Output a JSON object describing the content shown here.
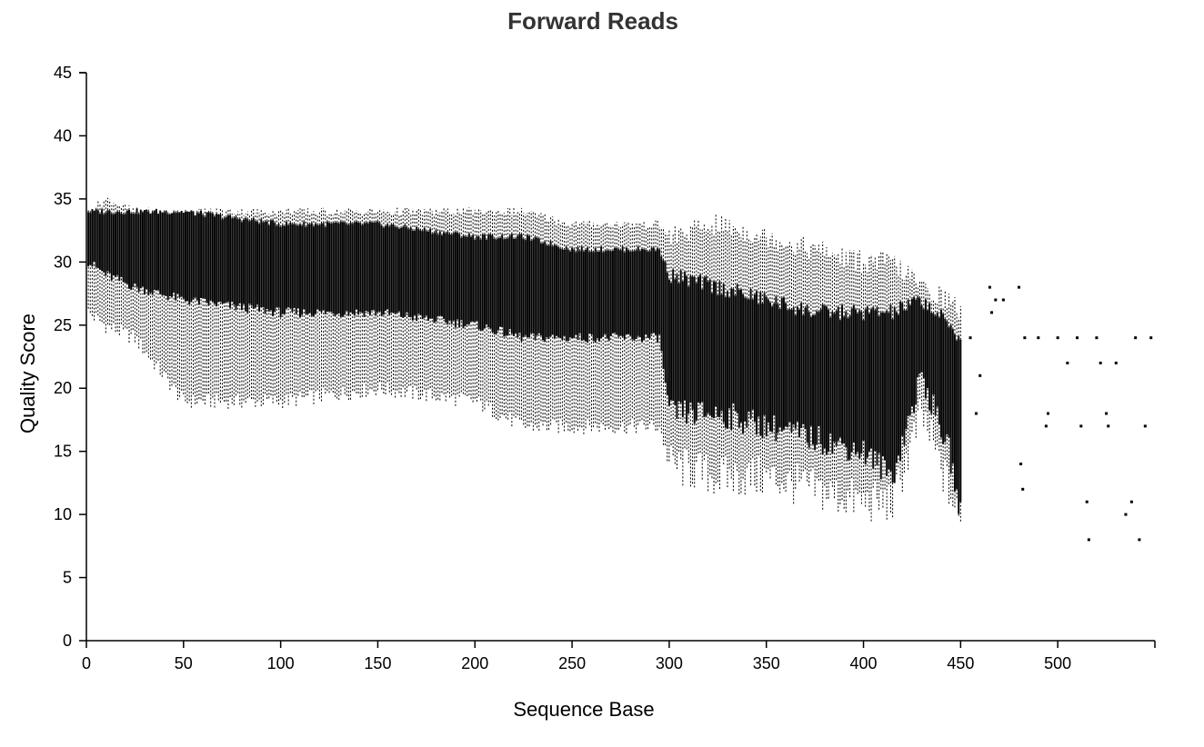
{
  "chart_data": {
    "type": "box",
    "title": "Forward Reads",
    "xlabel": "Sequence Base",
    "ylabel": "Quality Score",
    "xlim": [
      0,
      550
    ],
    "ylim": [
      0,
      45
    ],
    "x_ticks": [
      0,
      50,
      100,
      150,
      200,
      250,
      300,
      350,
      400,
      450,
      500
    ],
    "y_ticks": [
      0,
      5,
      10,
      15,
      20,
      25,
      30,
      35,
      40,
      45
    ],
    "grid": false,
    "legend": "none",
    "color": "#000000",
    "description_of_marks": "per-base quality box plots; dense black boxes with dashed whiskers",
    "profile": [
      {
        "base": 1,
        "whisker_low": 26,
        "q1": 30,
        "median": 32,
        "q3": 34,
        "whisker_high": 34
      },
      {
        "base": 10,
        "whisker_low": 25,
        "q1": 29,
        "median": 31,
        "q3": 34,
        "whisker_high": 35
      },
      {
        "base": 25,
        "whisker_low": 24,
        "q1": 28,
        "median": 31,
        "q3": 34,
        "whisker_high": 34
      },
      {
        "base": 50,
        "whisker_low": 19,
        "q1": 27,
        "median": 30,
        "q3": 34,
        "whisker_high": 34
      },
      {
        "base": 100,
        "whisker_low": 19,
        "q1": 26,
        "median": 29,
        "q3": 33,
        "whisker_high": 34
      },
      {
        "base": 150,
        "whisker_low": 20,
        "q1": 26,
        "median": 29,
        "q3": 33,
        "whisker_high": 34
      },
      {
        "base": 200,
        "whisker_low": 19,
        "q1": 25,
        "median": 29,
        "q3": 32,
        "whisker_high": 34
      },
      {
        "base": 225,
        "whisker_low": 17,
        "q1": 24,
        "median": 28,
        "q3": 32,
        "whisker_high": 34
      },
      {
        "base": 250,
        "whisker_low": 17,
        "q1": 24,
        "median": 28,
        "q3": 31,
        "whisker_high": 33
      },
      {
        "base": 275,
        "whisker_low": 17,
        "q1": 24,
        "median": 27,
        "q3": 31,
        "whisker_high": 33
      },
      {
        "base": 295,
        "whisker_low": 17,
        "q1": 24,
        "median": 27,
        "q3": 31,
        "whisker_high": 33
      },
      {
        "base": 300,
        "whisker_low": 14,
        "q1": 18,
        "median": 25,
        "q3": 29,
        "whisker_high": 32
      },
      {
        "base": 325,
        "whisker_low": 13,
        "q1": 18,
        "median": 24,
        "q3": 28,
        "whisker_high": 33
      },
      {
        "base": 350,
        "whisker_low": 13,
        "q1": 17,
        "median": 23,
        "q3": 27,
        "whisker_high": 32
      },
      {
        "base": 375,
        "whisker_low": 12,
        "q1": 16,
        "median": 22,
        "q3": 26,
        "whisker_high": 31
      },
      {
        "base": 400,
        "whisker_low": 11,
        "q1": 15,
        "median": 22,
        "q3": 26,
        "whisker_high": 30
      },
      {
        "base": 415,
        "whisker_low": 11,
        "q1": 13,
        "median": 21,
        "q3": 26,
        "whisker_high": 30
      },
      {
        "base": 430,
        "whisker_low": 18,
        "q1": 21,
        "median": 24,
        "q3": 27,
        "whisker_high": 28
      },
      {
        "base": 444,
        "whisker_low": 12,
        "q1": 15,
        "median": 22,
        "q3": 25,
        "whisker_high": 27
      },
      {
        "base": 450,
        "whisker_low": 9,
        "q1": 10,
        "median": 12,
        "q3": 24,
        "whisker_high": 26
      }
    ],
    "sparse_points": [
      {
        "x": 455,
        "y": 24
      },
      {
        "x": 458,
        "y": 18
      },
      {
        "x": 460,
        "y": 21
      },
      {
        "x": 465,
        "y": 28
      },
      {
        "x": 466,
        "y": 26
      },
      {
        "x": 468,
        "y": 27
      },
      {
        "x": 472,
        "y": 27
      },
      {
        "x": 480,
        "y": 28
      },
      {
        "x": 481,
        "y": 14
      },
      {
        "x": 482,
        "y": 12
      },
      {
        "x": 483,
        "y": 24
      },
      {
        "x": 490,
        "y": 24
      },
      {
        "x": 494,
        "y": 17
      },
      {
        "x": 495,
        "y": 18
      },
      {
        "x": 500,
        "y": 24
      },
      {
        "x": 505,
        "y": 22
      },
      {
        "x": 510,
        "y": 24
      },
      {
        "x": 512,
        "y": 17
      },
      {
        "x": 515,
        "y": 11
      },
      {
        "x": 516,
        "y": 8
      },
      {
        "x": 520,
        "y": 24
      },
      {
        "x": 522,
        "y": 22
      },
      {
        "x": 525,
        "y": 18
      },
      {
        "x": 526,
        "y": 17
      },
      {
        "x": 530,
        "y": 22
      },
      {
        "x": 535,
        "y": 10
      },
      {
        "x": 538,
        "y": 11
      },
      {
        "x": 540,
        "y": 24
      },
      {
        "x": 542,
        "y": 8
      },
      {
        "x": 545,
        "y": 17
      },
      {
        "x": 548,
        "y": 24
      }
    ]
  }
}
